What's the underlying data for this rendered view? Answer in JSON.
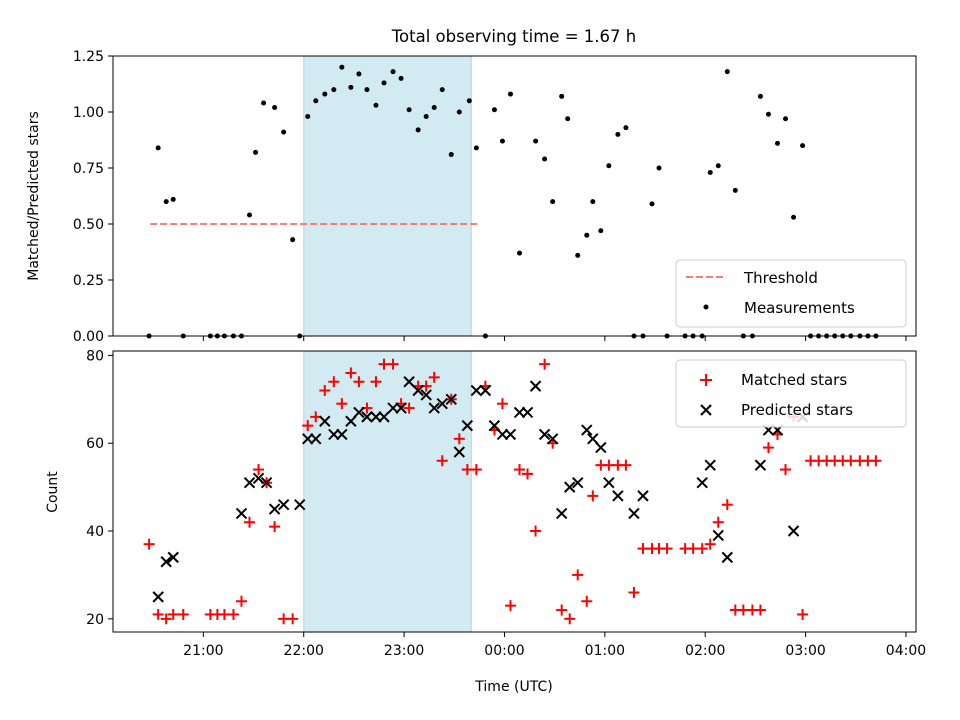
{
  "chart_data": [
    {
      "type": "scatter",
      "title": "Total observing time = 1.67 h",
      "xlabel": "",
      "ylabel": "Matched/Predicted stars",
      "ylim": [
        0,
        1.25
      ],
      "yticks": [
        "0.00",
        "0.25",
        "0.50",
        "0.75",
        "1.00",
        "1.25"
      ],
      "xlim_hours": [
        20.1,
        28.1
      ],
      "shaded_span_hours": [
        22.0,
        23.67
      ],
      "legend_position": "lower-right",
      "threshold": {
        "name": "Threshold",
        "value": 0.5,
        "x_range_hours": [
          20.47,
          23.73
        ],
        "color": "#f08080"
      },
      "series": [
        {
          "name": "Measurements",
          "color": "#000000",
          "x_hours": [
            20.46,
            20.55,
            20.63,
            20.7,
            20.8,
            21.07,
            21.14,
            21.21,
            21.3,
            21.38,
            21.46,
            21.52,
            21.6,
            21.71,
            21.8,
            21.89,
            21.96,
            22.04,
            22.12,
            22.21,
            22.3,
            22.38,
            22.47,
            22.55,
            22.63,
            22.72,
            22.8,
            22.89,
            22.97,
            23.05,
            23.14,
            23.22,
            23.3,
            23.38,
            23.47,
            23.55,
            23.65,
            23.72,
            23.81,
            23.9,
            23.98,
            24.06,
            24.15,
            24.31,
            24.4,
            24.48,
            24.57,
            24.63,
            24.73,
            24.82,
            24.88,
            24.96,
            25.04,
            25.13,
            25.21,
            25.29,
            25.38,
            25.47,
            25.54,
            25.62,
            25.8,
            25.88,
            25.97,
            26.05,
            26.13,
            26.22,
            26.3,
            26.38,
            26.47,
            26.55,
            26.63,
            26.72,
            26.8,
            26.88,
            26.97,
            27.05,
            27.13,
            27.21,
            27.29,
            27.37,
            27.45,
            27.54,
            27.62,
            27.7
          ],
          "values": [
            0,
            0.84,
            0.6,
            0.61,
            0,
            0,
            0,
            0,
            0,
            0,
            0.54,
            0.82,
            1.04,
            1.02,
            0.91,
            0.43,
            0,
            0.98,
            1.05,
            1.08,
            1.1,
            1.2,
            1.11,
            1.17,
            1.1,
            1.03,
            1.13,
            1.18,
            1.15,
            1.01,
            0.92,
            0.98,
            1.02,
            1.1,
            0.81,
            1.0,
            1.05,
            0.84,
            0,
            1.01,
            0.87,
            1.08,
            0.37,
            0.87,
            0.79,
            0.6,
            1.07,
            0.97,
            0.36,
            0.45,
            0.6,
            0.47,
            0.76,
            0.9,
            0.93,
            0,
            0,
            0.59,
            0.75,
            0,
            0,
            0,
            0,
            0.73,
            0.76,
            1.18,
            0.65,
            0,
            0,
            1.07,
            0.99,
            0.86,
            0.97,
            0.53,
            0.85,
            0,
            0,
            0,
            0,
            0,
            0,
            0,
            0,
            0
          ]
        }
      ]
    },
    {
      "type": "scatter",
      "title": "",
      "xlabel": "Time (UTC)",
      "ylabel": "Count",
      "ylim": [
        17,
        81
      ],
      "yticks": [
        "20",
        "40",
        "60",
        "80"
      ],
      "xlim_hours": [
        20.1,
        28.1
      ],
      "x_tick_hours": [
        21,
        22,
        23,
        24,
        25,
        26,
        27,
        28
      ],
      "x_tick_labels": [
        "21:00",
        "22:00",
        "23:00",
        "00:00",
        "01:00",
        "02:00",
        "03:00",
        "04:00"
      ],
      "shaded_span_hours": [
        22.0,
        23.67
      ],
      "legend_position": "upper-right",
      "series": [
        {
          "name": "Matched stars",
          "marker": "plus",
          "color": "#ff0000",
          "x_hours": [
            20.46,
            20.55,
            20.63,
            20.7,
            20.8,
            21.07,
            21.14,
            21.21,
            21.3,
            21.38,
            21.46,
            21.55,
            21.63,
            21.71,
            21.8,
            21.89,
            22.04,
            22.12,
            22.21,
            22.3,
            22.38,
            22.47,
            22.55,
            22.63,
            22.72,
            22.8,
            22.89,
            22.97,
            23.05,
            23.14,
            23.22,
            23.3,
            23.38,
            23.47,
            23.55,
            23.63,
            23.72,
            23.81,
            23.9,
            23.98,
            24.06,
            24.15,
            24.23,
            24.31,
            24.4,
            24.48,
            24.57,
            24.65,
            24.73,
            24.82,
            24.88,
            24.96,
            25.04,
            25.13,
            25.21,
            25.29,
            25.38,
            25.47,
            25.54,
            25.62,
            25.8,
            25.88,
            25.97,
            26.05,
            26.13,
            26.22,
            26.3,
            26.38,
            26.47,
            26.55,
            26.63,
            26.72,
            26.8,
            26.88,
            26.97,
            27.05,
            27.13,
            27.21,
            27.29,
            27.37,
            27.45,
            27.54,
            27.62,
            27.7
          ],
          "values": [
            37,
            21,
            20,
            21,
            21,
            21,
            21,
            21,
            21,
            24,
            42,
            54,
            51,
            41,
            20,
            20,
            64,
            66,
            72,
            74,
            69,
            76,
            74,
            68,
            74,
            78,
            78,
            69,
            68,
            73,
            73,
            75,
            56,
            70,
            61,
            54,
            54,
            73,
            63,
            69,
            23,
            54,
            53,
            40,
            78,
            60,
            22,
            20,
            30,
            24,
            48,
            55,
            55,
            55,
            55,
            26,
            36,
            36,
            36,
            36,
            36,
            36,
            36,
            37,
            42,
            46,
            22,
            22,
            22,
            22,
            59,
            62,
            54,
            66,
            21,
            56,
            56,
            56,
            56,
            56,
            56,
            56,
            56,
            56
          ]
        },
        {
          "name": "Predicted stars",
          "marker": "x",
          "color": "#000000",
          "x_hours": [
            20.55,
            20.63,
            20.7,
            21.38,
            21.46,
            21.55,
            21.63,
            21.71,
            21.8,
            21.96,
            22.04,
            22.12,
            22.21,
            22.3,
            22.38,
            22.47,
            22.55,
            22.63,
            22.72,
            22.8,
            22.89,
            22.97,
            23.05,
            23.14,
            23.22,
            23.3,
            23.38,
            23.47,
            23.55,
            23.63,
            23.72,
            23.81,
            23.9,
            23.98,
            24.06,
            24.15,
            24.23,
            24.31,
            24.4,
            24.48,
            24.57,
            24.65,
            24.73,
            24.82,
            24.88,
            24.96,
            25.04,
            25.13,
            25.29,
            25.38,
            25.97,
            26.05,
            26.13,
            26.22,
            26.55,
            26.63,
            26.72,
            26.88,
            26.97
          ],
          "values": [
            25,
            33,
            34,
            44,
            51,
            52,
            51,
            45,
            46,
            46,
            61,
            61,
            65,
            62,
            62,
            65,
            67,
            66,
            66,
            66,
            68,
            68,
            74,
            72,
            71,
            68,
            69,
            70,
            58,
            64,
            72,
            72,
            64,
            62,
            62,
            67,
            67,
            73,
            62,
            61,
            44,
            50,
            51,
            63,
            61,
            59,
            51,
            48,
            44,
            48,
            51,
            55,
            39,
            34,
            55,
            63,
            63,
            40,
            66
          ]
        }
      ]
    }
  ]
}
